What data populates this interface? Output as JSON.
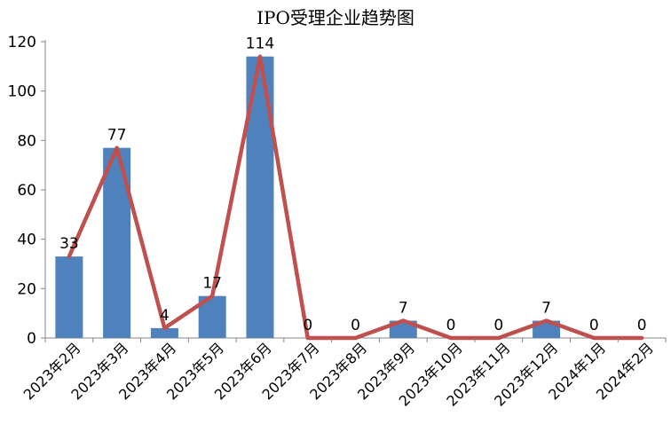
{
  "chart_data": {
    "type": "bar",
    "title": "IPO受理企业趋势图",
    "xlabel": "",
    "ylabel": "",
    "categories": [
      "2023年2月",
      "2023年3月",
      "2023年4月",
      "2023年5月",
      "2023年6月",
      "2023年7月",
      "2023年8月",
      "2023年9月",
      "2023年10月",
      "2023年11月",
      "2023年12月",
      "2024年1月",
      "2024年2月"
    ],
    "series": [
      {
        "values": [
          33,
          77,
          4,
          17,
          114,
          0,
          0,
          7,
          0,
          0,
          7,
          0,
          0
        ],
        "render": "bar",
        "color": "#4F81BD"
      },
      {
        "values": [
          33,
          77,
          4,
          17,
          114,
          0,
          0,
          7,
          0,
          0,
          7,
          0,
          0
        ],
        "render": "line",
        "color": "#C0504D"
      }
    ],
    "data_labels": [
      "33",
      "77",
      "4",
      "17",
      "114",
      "0",
      "0",
      "7",
      "0",
      "0",
      "7",
      "0",
      "0"
    ],
    "yticks": [
      "0",
      "20",
      "40",
      "60",
      "80",
      "100",
      "120"
    ],
    "ylim": [
      0,
      120
    ],
    "grid": false,
    "legend": "none"
  }
}
